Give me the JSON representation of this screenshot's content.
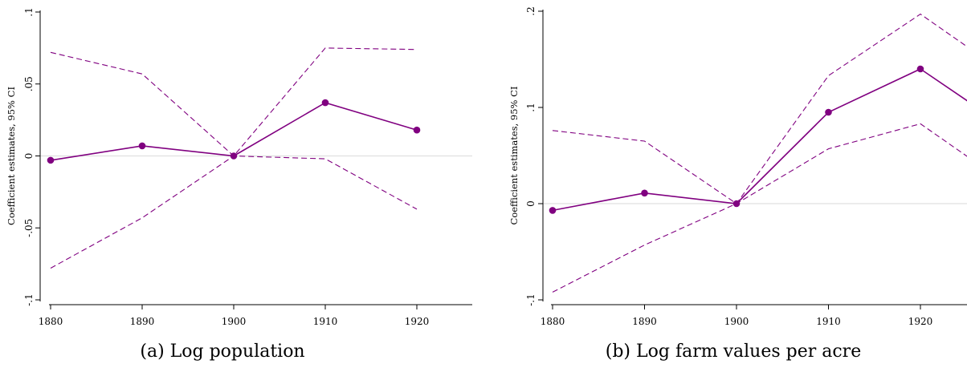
{
  "chart_data": [
    {
      "type": "line",
      "caption": "(a) Log population",
      "ylabel": "Coefficient estimates, 95% CI",
      "x": [
        1880,
        1890,
        1900,
        1910,
        1920
      ],
      "xticks": [
        "1880",
        "1890",
        "1900",
        "1910",
        "1920"
      ],
      "yticks": [
        {
          "value": 0.1,
          "label": ".1"
        },
        {
          "value": 0.05,
          "label": ".05"
        },
        {
          "value": 0,
          "label": "0"
        },
        {
          "value": -0.05,
          "label": "-.05"
        },
        {
          "value": -0.1,
          "label": "-.1"
        }
      ],
      "xlim": [
        1880,
        1926
      ],
      "ylim": [
        -0.1,
        0.1
      ],
      "reference_line": 0,
      "series": [
        {
          "role": "estimate",
          "values": [
            -0.003,
            0.007,
            0.0,
            0.037,
            0.018
          ]
        },
        {
          "role": "ci_upper",
          "values": [
            0.072,
            0.057,
            0.0,
            0.075,
            0.074
          ]
        },
        {
          "role": "ci_lower",
          "values": [
            -0.078,
            -0.043,
            0.0,
            -0.002,
            -0.037
          ]
        }
      ],
      "color": "#800080"
    },
    {
      "type": "line",
      "caption": "(b) Log farm values per acre",
      "ylabel": "Coefficient estimates, 95% CI",
      "x": [
        1880,
        1890,
        1900,
        1910,
        1920,
        1926
      ],
      "xticks": [
        "1880",
        "1890",
        "1900",
        "1910",
        "1920"
      ],
      "yticks": [
        {
          "value": 0.2,
          "label": ".2"
        },
        {
          "value": 0.1,
          "label": ".1"
        },
        {
          "value": 0,
          "label": "0"
        },
        {
          "value": -0.1,
          "label": "-.1"
        }
      ],
      "xlim": [
        1880,
        1926
      ],
      "ylim": [
        -0.1,
        0.2
      ],
      "reference_line": 0,
      "series": [
        {
          "role": "estimate",
          "values": [
            -0.007,
            0.011,
            0.0,
            0.095,
            0.14,
            0.101
          ]
        },
        {
          "role": "ci_upper",
          "values": [
            0.076,
            0.065,
            0.0,
            0.133,
            0.197,
            0.157
          ]
        },
        {
          "role": "ci_lower",
          "values": [
            -0.092,
            -0.043,
            0.0,
            0.057,
            0.083,
            0.043
          ]
        }
      ],
      "color": "#800080"
    }
  ]
}
